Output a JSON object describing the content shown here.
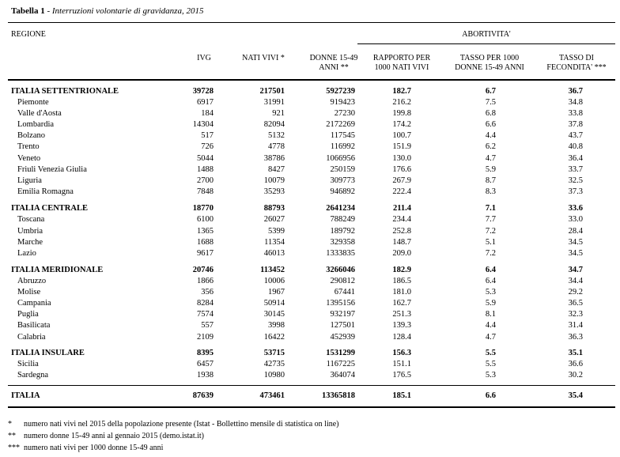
{
  "title": {
    "bold": "Tabella 1",
    "sep": " - ",
    "italic": "Interruzioni volontarie di gravidanza, 2015"
  },
  "headers": {
    "regione": "REGIONE",
    "abortivita": "ABORTIVITA'",
    "ivg": "IVG",
    "nati": "NATI VIVI *",
    "donne": [
      "DONNE 15-49",
      "ANNI **"
    ],
    "rapporto": [
      "RAPPORTO PER",
      "1000 NATI VIVI"
    ],
    "tasso": [
      "TASSO PER 1000",
      "DONNE 15-49 ANNI"
    ],
    "fecondita": [
      "TASSO DI",
      "FECONDITA' ***"
    ]
  },
  "rows": [
    {
      "name": "ITALIA SETTENTRIONALE",
      "ivg": "39728",
      "nati": "217501",
      "donne": "5927239",
      "rapporto": "182.7",
      "tasso": "6.7",
      "fecondita": "36.7",
      "bold": true
    },
    {
      "name": "Piemonte",
      "ivg": "6917",
      "nati": "31991",
      "donne": "919423",
      "rapporto": "216.2",
      "tasso": "7.5",
      "fecondita": "34.8"
    },
    {
      "name": "Valle d'Aosta",
      "ivg": "184",
      "nati": "921",
      "donne": "27230",
      "rapporto": "199.8",
      "tasso": "6.8",
      "fecondita": "33.8"
    },
    {
      "name": "Lombardia",
      "ivg": "14304",
      "nati": "82094",
      "donne": "2172269",
      "rapporto": "174.2",
      "tasso": "6.6",
      "fecondita": "37.8"
    },
    {
      "name": "Bolzano",
      "ivg": "517",
      "nati": "5132",
      "donne": "117545",
      "rapporto": "100.7",
      "tasso": "4.4",
      "fecondita": "43.7"
    },
    {
      "name": "Trento",
      "ivg": "726",
      "nati": "4778",
      "donne": "116992",
      "rapporto": "151.9",
      "tasso": "6.2",
      "fecondita": "40.8"
    },
    {
      "name": "Veneto",
      "ivg": "5044",
      "nati": "38786",
      "donne": "1066956",
      "rapporto": "130.0",
      "tasso": "4.7",
      "fecondita": "36.4"
    },
    {
      "name": "Friuli Venezia Giulia",
      "ivg": "1488",
      "nati": "8427",
      "donne": "250159",
      "rapporto": "176.6",
      "tasso": "5.9",
      "fecondita": "33.7"
    },
    {
      "name": "Liguria",
      "ivg": "2700",
      "nati": "10079",
      "donne": "309773",
      "rapporto": "267.9",
      "tasso": "8.7",
      "fecondita": "32.5"
    },
    {
      "name": "Emilia Romagna",
      "ivg": "7848",
      "nati": "35293",
      "donne": "946892",
      "rapporto": "222.4",
      "tasso": "8.3",
      "fecondita": "37.3"
    },
    {
      "name": "ITALIA CENTRALE",
      "ivg": "18770",
      "nati": "88793",
      "donne": "2641234",
      "rapporto": "211.4",
      "tasso": "7.1",
      "fecondita": "33.6",
      "bold": true
    },
    {
      "name": "Toscana",
      "ivg": "6100",
      "nati": "26027",
      "donne": "788249",
      "rapporto": "234.4",
      "tasso": "7.7",
      "fecondita": "33.0"
    },
    {
      "name": "Umbria",
      "ivg": "1365",
      "nati": "5399",
      "donne": "189792",
      "rapporto": "252.8",
      "tasso": "7.2",
      "fecondita": "28.4"
    },
    {
      "name": "Marche",
      "ivg": "1688",
      "nati": "11354",
      "donne": "329358",
      "rapporto": "148.7",
      "tasso": "5.1",
      "fecondita": "34.5"
    },
    {
      "name": "Lazio",
      "ivg": "9617",
      "nati": "46013",
      "donne": "1333835",
      "rapporto": "209.0",
      "tasso": "7.2",
      "fecondita": "34.5"
    },
    {
      "name": "ITALIA MERIDIONALE",
      "ivg": "20746",
      "nati": "113452",
      "donne": "3266046",
      "rapporto": "182.9",
      "tasso": "6.4",
      "fecondita": "34.7",
      "bold": true
    },
    {
      "name": "Abruzzo",
      "ivg": "1866",
      "nati": "10006",
      "donne": "290812",
      "rapporto": "186.5",
      "tasso": "6.4",
      "fecondita": "34.4"
    },
    {
      "name": "Molise",
      "ivg": "356",
      "nati": "1967",
      "donne": "67441",
      "rapporto": "181.0",
      "tasso": "5.3",
      "fecondita": "29.2"
    },
    {
      "name": "Campania",
      "ivg": "8284",
      "nati": "50914",
      "donne": "1395156",
      "rapporto": "162.7",
      "tasso": "5.9",
      "fecondita": "36.5"
    },
    {
      "name": "Puglia",
      "ivg": "7574",
      "nati": "30145",
      "donne": "932197",
      "rapporto": "251.3",
      "tasso": "8.1",
      "fecondita": "32.3"
    },
    {
      "name": "Basilicata",
      "ivg": "557",
      "nati": "3998",
      "donne": "127501",
      "rapporto": "139.3",
      "tasso": "4.4",
      "fecondita": "31.4"
    },
    {
      "name": "Calabria",
      "ivg": "2109",
      "nati": "16422",
      "donne": "452939",
      "rapporto": "128.4",
      "tasso": "4.7",
      "fecondita": "36.3"
    },
    {
      "name": "ITALIA INSULARE",
      "ivg": "8395",
      "nati": "53715",
      "donne": "1531299",
      "rapporto": "156.3",
      "tasso": "5.5",
      "fecondita": "35.1",
      "bold": true
    },
    {
      "name": "Sicilia",
      "ivg": "6457",
      "nati": "42735",
      "donne": "1167225",
      "rapporto": "151.1",
      "tasso": "5.5",
      "fecondita": "36.6"
    },
    {
      "name": "Sardegna",
      "ivg": "1938",
      "nati": "10980",
      "donne": "364074",
      "rapporto": "176.5",
      "tasso": "5.3",
      "fecondita": "30.2"
    }
  ],
  "total": {
    "name": "ITALIA",
    "ivg": "87639",
    "nati": "473461",
    "donne": "13365818",
    "rapporto": "185.1",
    "tasso": "6.6",
    "fecondita": "35.4"
  },
  "footnotes": [
    {
      "mark": "*",
      "text": "numero nati vivi nel 2015 della popolazione presente (Istat - Bollettino mensile di statistica on line)"
    },
    {
      "mark": "**",
      "text": "numero donne 15-49 anni al gennaio 2015 (demo.istat.it)"
    },
    {
      "mark": "***",
      "text": "numero nati vivi per 1000 donne 15-49 anni"
    }
  ]
}
